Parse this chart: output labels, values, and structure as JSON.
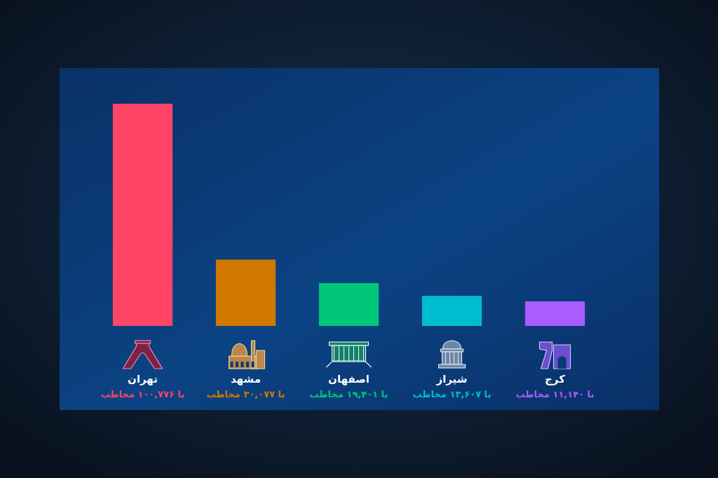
{
  "chart_data": {
    "type": "bar",
    "categories": [
      "تهران",
      "مشهد",
      "اصفهان",
      "شیراز",
      "کرج"
    ],
    "values": [
      100776,
      30077,
      19401,
      13607,
      11140
    ],
    "colors": [
      "#ff4466",
      "#d07800",
      "#00c878",
      "#00bcd0",
      "#a95cff"
    ],
    "value_labels": [
      "با ۱۰۰,۷۷۶ مخاطب",
      "با ۳۰,۰۷۷ مخاطب",
      "با ۱۹,۴۰۱ مخاطب",
      "با ۱۳,۶۰۷ مخاطب",
      "با ۱۱,۱۴۰ مخاطب"
    ]
  }
}
